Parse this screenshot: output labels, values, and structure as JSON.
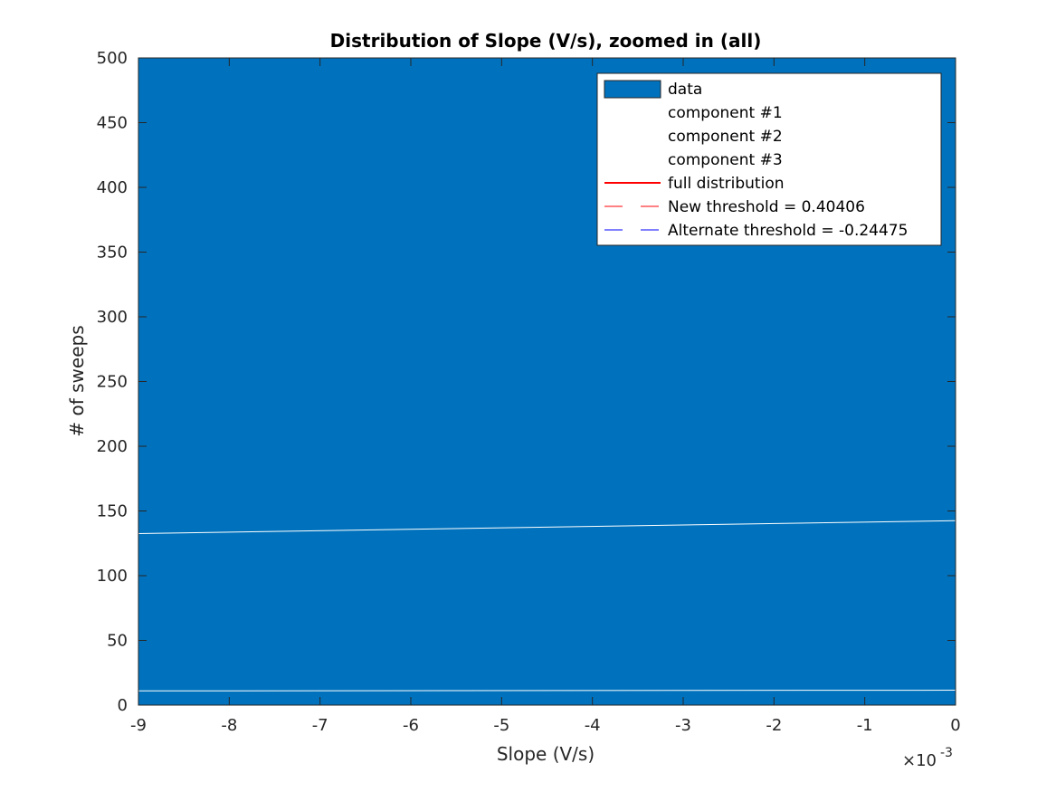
{
  "chart_data": {
    "type": "area",
    "title": "Distribution of Slope (V/s), zoomed in (all)",
    "xlabel": "Slope (V/s)",
    "ylabel": "# of sweeps",
    "x_exponent_label": "×10",
    "x_exponent": "-3",
    "xlim": [
      -0.009,
      0
    ],
    "ylim": [
      0,
      500
    ],
    "x_ticks": [
      -9,
      -8,
      -7,
      -6,
      -5,
      -4,
      -3,
      -2,
      -1,
      0
    ],
    "y_ticks": [
      0,
      50,
      100,
      150,
      200,
      250,
      300,
      350,
      400,
      450,
      500
    ],
    "grid": false,
    "legend_position": "top-right",
    "series": [
      {
        "name": "data",
        "kind": "histogram",
        "color": "#0072BD",
        "note_value": 500,
        "x": [
          -0.009,
          0
        ],
        "y": [
          500,
          500
        ]
      },
      {
        "name": "component #1",
        "kind": "line",
        "color": "#ffffff",
        "x": [
          -0.009,
          0
        ],
        "y": [
          11,
          11.5
        ]
      },
      {
        "name": "component #2",
        "kind": "line",
        "color": "#ffffff",
        "x": [
          -0.009,
          0
        ],
        "y": [
          132.5,
          142.5
        ]
      },
      {
        "name": "component #3",
        "kind": "line",
        "color": "#ffffff",
        "x": [],
        "y": []
      },
      {
        "name": "full distribution",
        "kind": "line",
        "color": "#ff0000",
        "x": [],
        "y": []
      },
      {
        "name": "New threshold = 0.40406",
        "kind": "dashed",
        "color": "#ff0000",
        "x": [],
        "y": []
      },
      {
        "name": "Alternate threshold = -0.24475",
        "kind": "dashed",
        "color": "#0000ff",
        "x": [],
        "y": []
      }
    ]
  }
}
